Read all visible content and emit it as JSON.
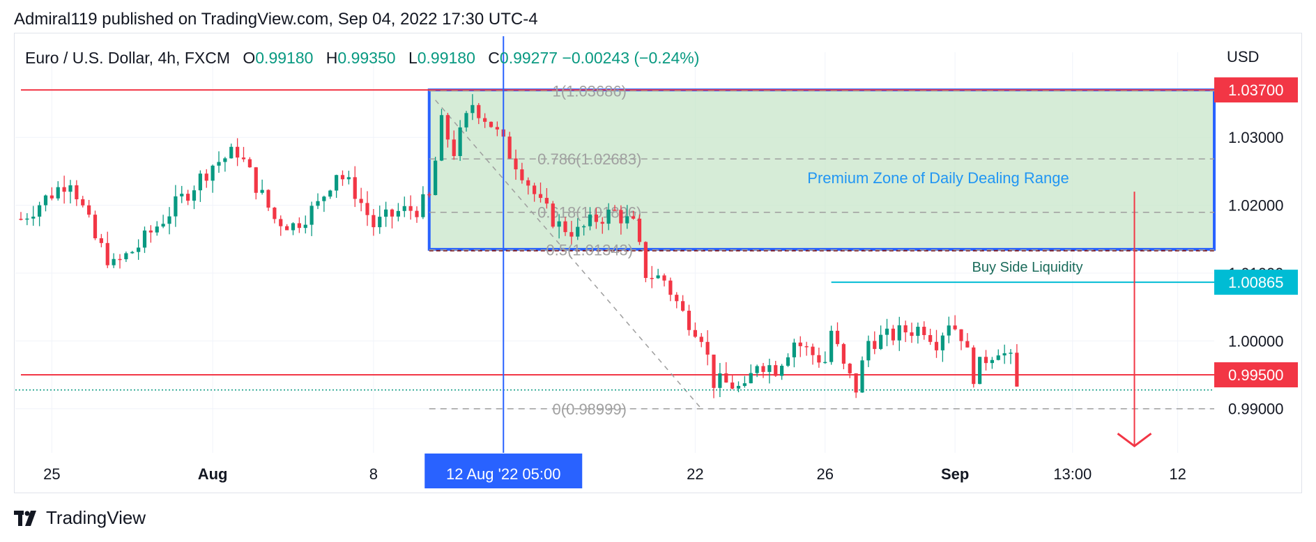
{
  "header": {
    "published": "Admiral119 published on TradingView.com, Sep 04, 2022 17:30 UTC-4"
  },
  "legend": {
    "symbol": "Euro / U.S. Dollar, 4h, FXCM",
    "open_label": "O",
    "open": "0.99180",
    "high_label": "H",
    "high": "0.99350",
    "low_label": "L",
    "low": "0.99180",
    "close_label": "C",
    "close": "0.99277",
    "change": "−0.00243 (−0.24%)"
  },
  "axis": {
    "currency": "USD"
  },
  "footer": {
    "brand": "TradingView"
  },
  "colors": {
    "up": "#089981",
    "down": "#f23645",
    "zone_fill": "#c8e6c9",
    "zone_border": "#2962ff",
    "fib": "#9e9e9e",
    "level": "#f23645",
    "liquidity": "#00bcd4",
    "crosshair": "#2962ff"
  },
  "chart_data": {
    "type": "candlestick",
    "ylim": [
      0.9835,
      1.0405
    ],
    "y_ticks": [
      "1.03000",
      "1.02000",
      "1.01000",
      "1.00000",
      "0.99000"
    ],
    "y_tick_values": [
      1.03,
      1.02,
      1.01,
      1.0,
      0.99
    ],
    "x_ticks": [
      "25",
      "Aug",
      "8",
      "22",
      "26",
      "Sep",
      "13:00",
      "12"
    ],
    "x_tick_index": [
      5,
      31,
      57,
      109,
      130,
      151,
      170,
      187
    ],
    "x_tick_bold": [
      false,
      true,
      false,
      false,
      false,
      true,
      false,
      false
    ],
    "x_range": [
      0,
      192
    ],
    "crosshair": {
      "index": 78,
      "label": "12 Aug '22   05:00"
    },
    "price_tags": [
      {
        "value": 1.037,
        "label": "1.03700",
        "color": "#f23645"
      },
      {
        "value": 1.00865,
        "label": "1.00865",
        "color": "#00bcd4"
      },
      {
        "value": 0.995,
        "label": "0.99500",
        "color": "#f23645"
      }
    ],
    "horizontal_levels": [
      {
        "value": 1.037,
        "from": 0,
        "color": "#f23645"
      },
      {
        "value": 0.995,
        "from": 0,
        "color": "#f23645"
      }
    ],
    "fib": [
      {
        "value": 1.03686,
        "label": "1(1.03686)"
      },
      {
        "value": 1.02683,
        "label": "0.786(1.02683)"
      },
      {
        "value": 1.01896,
        "label": "0.618(1.01896)"
      },
      {
        "value": 1.01343,
        "label": "0.5(1.01343)"
      },
      {
        "value": 0.98999,
        "label": "0(0.98999)"
      }
    ],
    "fib_from_index": 66,
    "zone": {
      "label": "Premium Zone of Daily Dealing Range",
      "top": 1.037,
      "bottom": 1.0135,
      "from_index": 66
    },
    "liquidity": {
      "label": "Buy Side Liquidity",
      "value": 1.00865,
      "from_index": 131
    },
    "current_price": 0.99277,
    "arrow": {
      "index": 180,
      "from": 1.022,
      "to": 0.9845
    },
    "close_anchors": [
      [
        0,
        1.018
      ],
      [
        4,
        1.021
      ],
      [
        8,
        1.024
      ],
      [
        12,
        1.015
      ],
      [
        15,
        1.011
      ],
      [
        19,
        1.014
      ],
      [
        23,
        1.018
      ],
      [
        27,
        1.022
      ],
      [
        31,
        1.026
      ],
      [
        35,
        1.028
      ],
      [
        38,
        1.023
      ],
      [
        41,
        1.018
      ],
      [
        44,
        1.017
      ],
      [
        48,
        1.02
      ],
      [
        51,
        1.025
      ],
      [
        54,
        1.022
      ],
      [
        57,
        1.017
      ],
      [
        61,
        1.019
      ],
      [
        64,
        1.0195
      ],
      [
        66,
        1.021
      ],
      [
        68,
        1.032
      ],
      [
        70,
        1.028
      ],
      [
        73,
        1.035
      ],
      [
        76,
        1.032
      ],
      [
        78,
        1.029
      ],
      [
        81,
        1.025
      ],
      [
        84,
        1.02
      ],
      [
        87,
        1.017
      ],
      [
        90,
        1.016
      ],
      [
        93,
        1.018
      ],
      [
        96,
        1.019
      ],
      [
        99,
        1.017
      ],
      [
        101,
        1.01
      ],
      [
        104,
        1.009
      ],
      [
        107,
        1.004
      ],
      [
        110,
        1.001
      ],
      [
        112,
        0.994
      ],
      [
        115,
        0.9935
      ],
      [
        117,
        0.9925
      ],
      [
        119,
        0.997
      ],
      [
        122,
        0.996
      ],
      [
        125,
        1.0
      ],
      [
        128,
        0.998
      ],
      [
        130,
        0.997
      ],
      [
        131,
        1.0015
      ],
      [
        133,
        0.996
      ],
      [
        135,
        0.993
      ],
      [
        137,
        1.0
      ],
      [
        140,
        1.0005
      ],
      [
        143,
        1.0015
      ],
      [
        146,
        1.002
      ],
      [
        148,
        1.0
      ],
      [
        150,
        1.003
      ],
      [
        152,
        1.001
      ],
      [
        154,
        0.995
      ],
      [
        156,
        0.9975
      ],
      [
        158,
        0.999
      ],
      [
        160,
        0.997
      ],
      [
        161,
        0.9928
      ]
    ]
  }
}
